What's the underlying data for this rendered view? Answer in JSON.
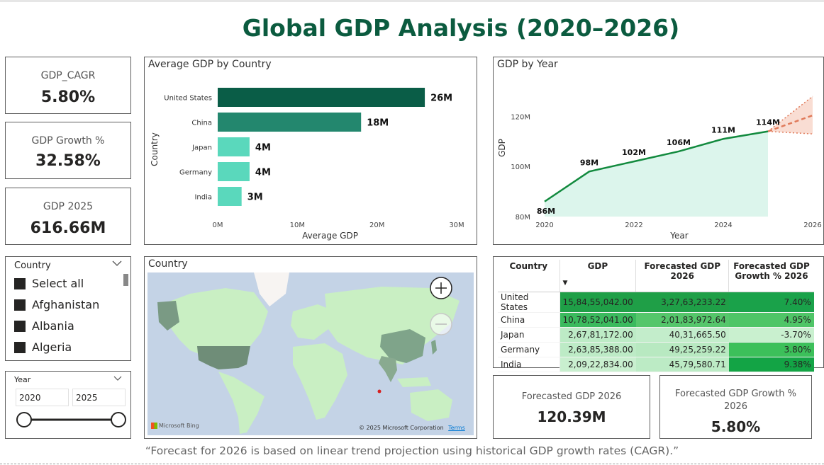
{
  "title": "Global GDP Analysis (2020–2026)",
  "kpis": {
    "cagr": {
      "label": "GDP_CAGR",
      "value": "5.80%"
    },
    "growth": {
      "label": "GDP Growth %",
      "value": "32.58%"
    },
    "gdp2025": {
      "label": "GDP 2025",
      "value": "616.66M"
    },
    "forecast": {
      "label": "Forecasted GDP 2026",
      "value": "120.39M"
    },
    "forecast_growth": {
      "label": "Forecasted GDP Growth % 2026",
      "value": "5.80%"
    }
  },
  "country_slicer": {
    "header": "Country",
    "options": [
      "Select all",
      "Afghanistan",
      "Albania",
      "Algeria"
    ]
  },
  "year_slicer": {
    "header": "Year",
    "from": "2020",
    "to": "2025"
  },
  "bar_chart": {
    "title": "Average GDP by Country",
    "chart_data": {
      "type": "bar",
      "orientation": "horizontal",
      "categories": [
        "United States",
        "China",
        "Japan",
        "Germany",
        "India"
      ],
      "values": [
        26,
        18,
        4,
        4,
        3
      ],
      "value_labels": [
        "26M",
        "18M",
        "4M",
        "4M",
        "3M"
      ],
      "xlabel": "Average GDP",
      "ylabel": "Country",
      "xticks": [
        "0M",
        "10M",
        "20M",
        "30M"
      ],
      "xlim": [
        0,
        30
      ],
      "colors": [
        "#0a5d47",
        "#23876e",
        "#5ad8bc",
        "#5ad8bc",
        "#5ad8bc"
      ]
    }
  },
  "line_chart": {
    "title": "GDP by Year",
    "chart_data": {
      "type": "area",
      "x": [
        2020,
        2021,
        2022,
        2023,
        2024,
        2025
      ],
      "values": [
        86,
        98,
        102,
        106,
        111,
        114
      ],
      "point_labels": [
        "86M",
        "98M",
        "102M",
        "106M",
        "111M",
        "114M"
      ],
      "xlabel": "Year",
      "ylabel": "GDP",
      "xticks": [
        "2020",
        "2022",
        "2024",
        "2026"
      ],
      "yticks": [
        "80M",
        "100M",
        "120M"
      ],
      "ylim": [
        80,
        130
      ],
      "xlim": [
        2020,
        2026
      ],
      "forecast": {
        "x": [
          2025,
          2026
        ],
        "values": [
          114,
          120.39
        ],
        "upper": [
          114,
          128
        ],
        "lower": [
          114,
          113
        ]
      },
      "line_color": "#128a3e",
      "fill_color": "#dcf5ec",
      "forecast_color": "#e07a5a"
    }
  },
  "map": {
    "title": "Country",
    "attribution": "© 2025 Microsoft Corporation",
    "terms": "Terms",
    "logo": "Microsoft Bing",
    "zoom_in": "+",
    "zoom_out": "−"
  },
  "table": {
    "headers": [
      "Country",
      "GDP",
      "Forecasted GDP 2026",
      "Forecasted GDP Growth % 2026"
    ],
    "rows": [
      {
        "country": "United States",
        "gdp": "15,84,55,042.00",
        "forecast": "3,27,63,233.22",
        "growth": "7.40%"
      },
      {
        "country": "China",
        "gdp": "10,78,52,041.00",
        "forecast": "2,01,83,972.64",
        "growth": "4.95%"
      },
      {
        "country": "Japan",
        "gdp": "2,67,81,172.00",
        "forecast": "40,31,665.50",
        "growth": "-3.70%"
      },
      {
        "country": "Germany",
        "gdp": "2,63,85,388.00",
        "forecast": "49,25,259.22",
        "growth": "3.80%"
      },
      {
        "country": "India",
        "gdp": "2,09,22,834.00",
        "forecast": "45,79,580.71",
        "growth": "9.38%"
      }
    ],
    "cell_colors": {
      "gdp": [
        "#1f9f47",
        "#3bba5e",
        "#bdebc6",
        "#bdebc6",
        "#c9efcf"
      ],
      "forecast": [
        "#1f9f47",
        "#55c66b",
        "#c3edcb",
        "#b8e9c1",
        "#bcebc5"
      ],
      "growth": [
        "#1aa24a",
        "#4fc567",
        "#c9f0cf",
        "#3cc05a",
        "#13a445"
      ]
    }
  },
  "caption": "“Forecast for 2026 is based on linear trend projection using historical GDP growth rates (CAGR).”"
}
